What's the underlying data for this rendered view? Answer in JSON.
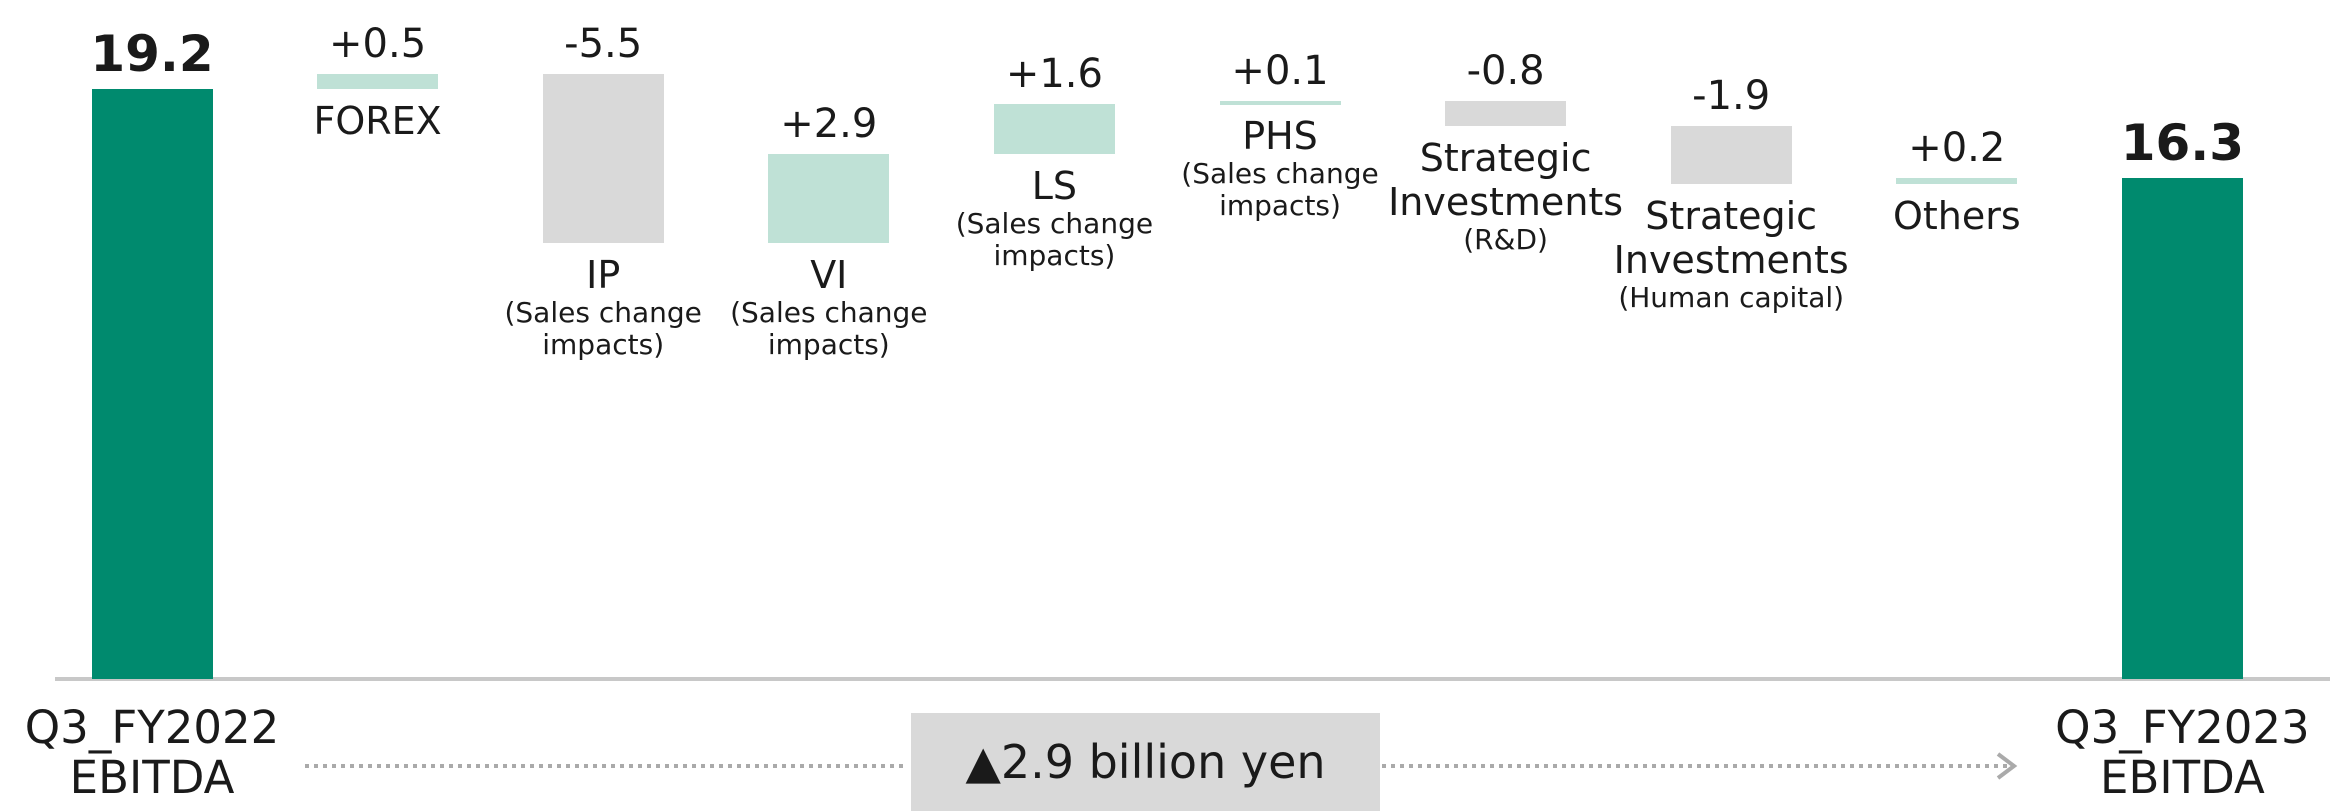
{
  "chart_data": {
    "type": "waterfall",
    "categories": [
      "Q3_FY2022 EBITDA",
      "FOREX",
      "IP",
      "VI",
      "LS",
      "PHS",
      "Strategic Investments",
      "Strategic Investments",
      "Others",
      "Q3_FY2023 EBITDA"
    ],
    "sublabels": [
      null,
      null,
      "(Sales change impacts)",
      "(Sales change impacts)",
      "(Sales change impacts)",
      "(Sales change impacts)",
      "(R&D)",
      "(Human capital)",
      null,
      null
    ],
    "values": [
      19.2,
      0.5,
      -5.5,
      2.9,
      1.6,
      0.1,
      -0.8,
      -1.9,
      0.2,
      16.3
    ],
    "value_labels": [
      "19.2",
      "+0.5",
      "-5.5",
      "+2.9",
      "+1.6",
      "+0.1",
      "-0.8",
      "-1.9",
      "+0.2",
      "16.3"
    ],
    "is_total": [
      true,
      false,
      false,
      false,
      false,
      false,
      false,
      false,
      false,
      true
    ],
    "colors": {
      "total": "#008a6e",
      "increase": "#bfe1d6",
      "decrease": "#d9d9d9"
    },
    "ylim": [
      0,
      22
    ],
    "annotation": "▲2.9 billion yen"
  }
}
